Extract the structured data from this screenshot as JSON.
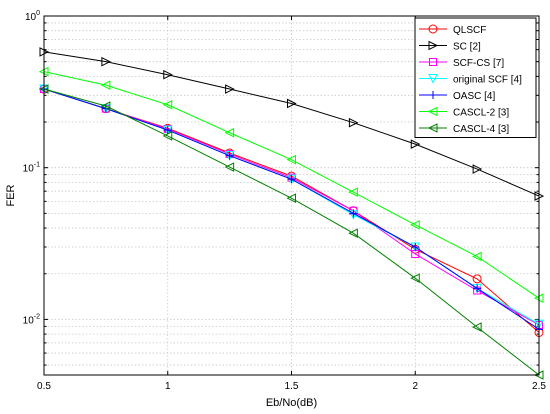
{
  "chart_data": {
    "type": "line",
    "xlabel": "Eb/No(dB)",
    "ylabel": "FER",
    "x_ticks": [
      0.5,
      1,
      1.5,
      2,
      2.5
    ],
    "x_tick_labels": [
      "0.5",
      "1",
      "1.5",
      "2",
      "2.5"
    ],
    "y_scale": "log",
    "y_major_ticks": [
      {
        "value": 0.01,
        "base": "10",
        "exp": "-2"
      },
      {
        "value": 0.1,
        "base": "10",
        "exp": "-1"
      },
      {
        "value": 1,
        "base": "10",
        "exp": "0"
      }
    ],
    "xlim": [
      0.5,
      2.5
    ],
    "ylim": [
      0.0043,
      1
    ],
    "grid": true,
    "legend_position": "top-right",
    "x": [
      0.5,
      0.75,
      1,
      1.25,
      1.5,
      1.75,
      2,
      2.25,
      2.5
    ],
    "series": [
      {
        "name": "QLSCF",
        "color": "#ff0000",
        "marker": "circle",
        "values": [
          0.33,
          0.245,
          0.182,
          0.125,
          0.088,
          0.052,
          0.029,
          0.0185,
          0.0082
        ]
      },
      {
        "name": "SC [2]",
        "color": "#000000",
        "marker": "triangle-right",
        "values": [
          0.58,
          0.5,
          0.41,
          0.33,
          0.265,
          0.198,
          0.143,
          0.098,
          0.065
        ]
      },
      {
        "name": "SCF-CS [7]",
        "color": "#ff00ff",
        "marker": "square",
        "values": [
          0.33,
          0.245,
          0.18,
          0.123,
          0.086,
          0.052,
          0.027,
          0.0155,
          0.0092
        ]
      },
      {
        "name": "original SCF [4]",
        "color": "#00ffff",
        "marker": "triangle-down",
        "values": [
          0.33,
          0.245,
          0.177,
          0.12,
          0.084,
          0.049,
          0.03,
          0.016,
          0.0093
        ]
      },
      {
        "name": "OASC [4]",
        "color": "#0000ff",
        "marker": "plus",
        "values": [
          0.33,
          0.245,
          0.177,
          0.12,
          0.084,
          0.05,
          0.03,
          0.016,
          0.0086
        ]
      },
      {
        "name": "CASCL-2 [3]",
        "color": "#00ff00",
        "marker": "triangle-left",
        "values": [
          0.43,
          0.35,
          0.26,
          0.17,
          0.113,
          0.069,
          0.042,
          0.026,
          0.0138
        ]
      },
      {
        "name": "CASCL-4 [3]",
        "color": "#008000",
        "marker": "triangle-left",
        "values": [
          0.33,
          0.255,
          0.162,
          0.101,
          0.063,
          0.037,
          0.0187,
          0.0089,
          0.0043
        ]
      }
    ]
  }
}
